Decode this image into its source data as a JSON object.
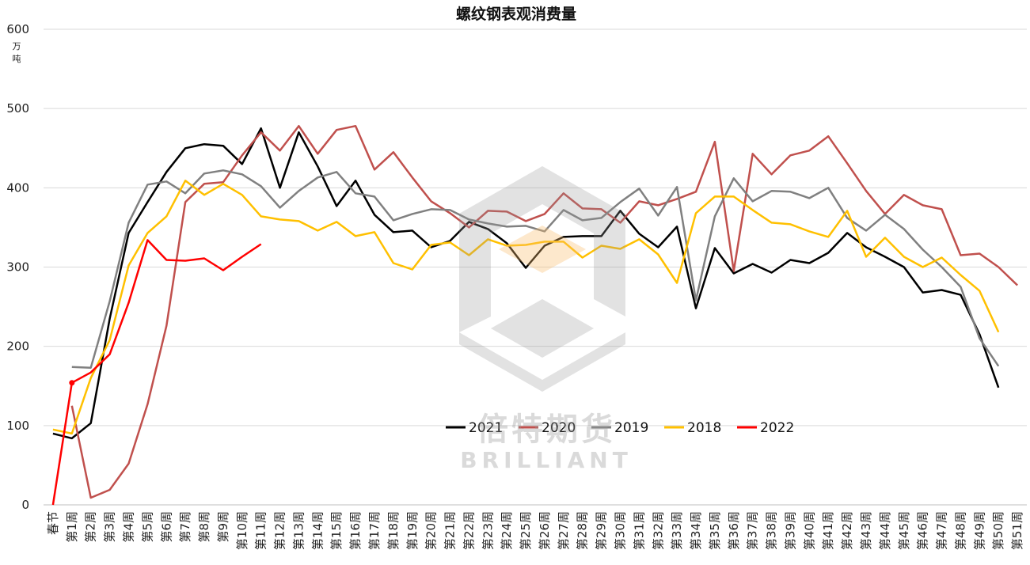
{
  "chart_data": {
    "type": "line",
    "title": "螺纹钢表观消费量",
    "ylabel": "万\n吨",
    "ylim": [
      0,
      600
    ],
    "yticks": [
      0,
      100,
      200,
      300,
      400,
      500,
      600
    ],
    "grid": true,
    "legend_position": "center-bottom",
    "categories": [
      "春节",
      "第1周",
      "第2周",
      "第3周",
      "第4周",
      "第5周",
      "第6周",
      "第7周",
      "第8周",
      "第9周",
      "第10周",
      "第11周",
      "第12周",
      "第13周",
      "第14周",
      "第15周",
      "第16周",
      "第17周",
      "第18周",
      "第19周",
      "第20周",
      "第21周",
      "第22周",
      "第23周",
      "第24周",
      "第25周",
      "第26周",
      "第27周",
      "第28周",
      "第29周",
      "第30周",
      "第31周",
      "第32周",
      "第33周",
      "第34周",
      "第35周",
      "第36周",
      "第37周",
      "第38周",
      "第39周",
      "第40周",
      "第41周",
      "第42周",
      "第43周",
      "第44周",
      "第45周",
      "第46周",
      "第47周",
      "第48周",
      "第49周",
      "第50周",
      "第51周"
    ],
    "series": [
      {
        "name": "2021",
        "color": "#000000",
        "values": [
          90,
          84,
          103,
          235,
          343,
          382,
          420,
          450,
          455,
          453,
          430,
          475,
          400,
          470,
          427,
          377,
          409,
          366,
          344,
          346,
          325,
          333,
          357,
          348,
          330,
          299,
          327,
          338,
          339,
          339,
          371,
          342,
          325,
          351,
          248,
          324,
          292,
          304,
          293,
          309,
          305,
          318,
          343,
          325,
          313,
          300,
          268,
          271,
          265,
          215,
          148,
          null
        ]
      },
      {
        "name": "2020",
        "color": "#c0504d",
        "values": [
          null,
          125,
          9,
          19,
          52,
          127,
          226,
          382,
          405,
          407,
          441,
          470,
          447,
          478,
          443,
          473,
          478,
          423,
          445,
          413,
          383,
          368,
          350,
          371,
          370,
          358,
          367,
          393,
          374,
          373,
          356,
          383,
          378,
          386,
          395,
          458,
          295,
          443,
          417,
          441,
          447,
          465,
          431,
          396,
          367,
          391,
          378,
          373,
          315,
          317,
          300,
          277
        ]
      },
      {
        "name": "2019",
        "color": "#808080",
        "values": [
          null,
          174,
          173,
          257,
          356,
          404,
          408,
          393,
          418,
          422,
          417,
          402,
          375,
          396,
          413,
          420,
          393,
          389,
          359,
          367,
          373,
          372,
          360,
          355,
          351,
          352,
          345,
          372,
          359,
          362,
          382,
          399,
          365,
          401,
          258,
          364,
          412,
          383,
          396,
          395,
          387,
          400,
          362,
          346,
          366,
          348,
          322,
          300,
          275,
          210,
          175,
          null
        ]
      },
      {
        "name": "2018",
        "color": "#ffc000",
        "values": [
          95,
          90,
          160,
          208,
          302,
          343,
          364,
          409,
          391,
          405,
          391,
          364,
          360,
          358,
          346,
          357,
          339,
          344,
          305,
          297,
          328,
          331,
          315,
          335,
          327,
          328,
          332,
          332,
          312,
          327,
          323,
          335,
          316,
          280,
          368,
          389,
          389,
          372,
          356,
          354,
          345,
          338,
          371,
          313,
          337,
          313,
          300,
          312,
          290,
          270,
          218,
          null
        ]
      },
      {
        "name": "2022",
        "color": "#ff0000",
        "values": [
          0,
          154,
          167,
          190,
          255,
          334,
          309,
          308,
          311,
          296,
          313,
          329,
          null,
          null,
          null,
          null,
          null,
          null,
          null,
          null,
          null,
          null,
          null,
          null,
          null,
          null,
          null,
          null,
          null,
          null,
          null,
          null,
          null,
          null,
          null,
          null,
          null,
          null,
          null,
          null,
          null,
          null,
          null,
          null,
          null,
          null,
          null,
          null,
          null,
          null,
          null,
          null
        ]
      }
    ]
  },
  "watermark": {
    "brand_cn": "倍特期货",
    "brand_en": "BRILLIANT"
  }
}
